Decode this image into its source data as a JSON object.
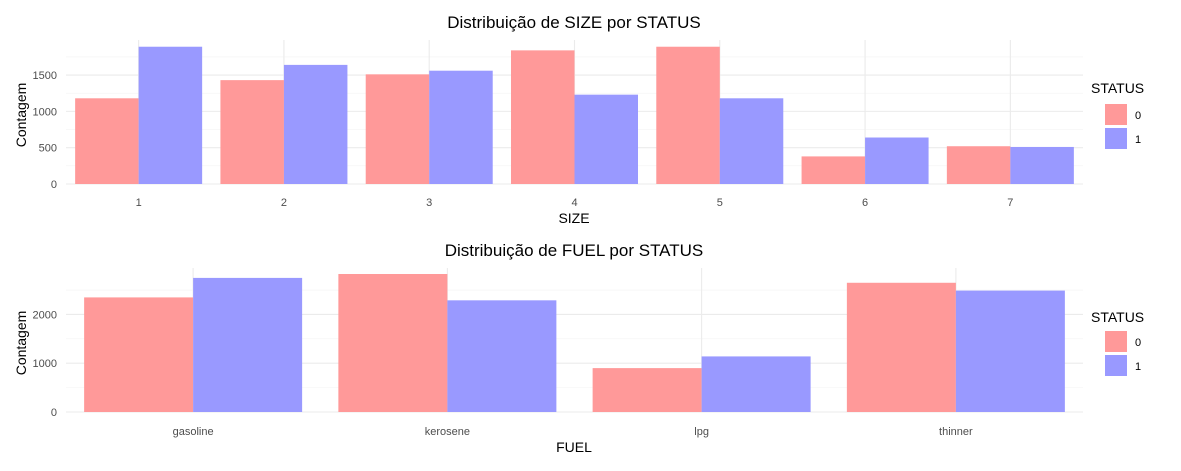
{
  "chart_data": [
    {
      "type": "bar",
      "title": "Distribuição de SIZE por STATUS",
      "xlabel": "SIZE",
      "ylabel": "Contagem",
      "categories": [
        "1",
        "2",
        "3",
        "4",
        "5",
        "6",
        "7"
      ],
      "series": [
        {
          "name": "0",
          "color": "#ff9999",
          "values": [
            1180,
            1430,
            1510,
            1840,
            1890,
            380,
            520
          ]
        },
        {
          "name": "1",
          "color": "#9999ff",
          "values": [
            1890,
            1640,
            1560,
            1230,
            1180,
            640,
            510
          ]
        }
      ],
      "ylim": [
        0,
        1900
      ],
      "yticks": [
        0,
        500,
        1000,
        1500
      ],
      "grid": true,
      "legend": {
        "title": "STATUS",
        "placement": "right"
      }
    },
    {
      "type": "bar",
      "title": "Distribuição de FUEL por STATUS",
      "xlabel": "FUEL",
      "ylabel": "Contagem",
      "categories": [
        "gasoline",
        "kerosene",
        "lpg",
        "thinner"
      ],
      "series": [
        {
          "name": "0",
          "color": "#ff9999",
          "values": [
            2350,
            2830,
            900,
            2650
          ]
        },
        {
          "name": "1",
          "color": "#9999ff",
          "values": [
            2750,
            2290,
            1140,
            2490
          ]
        }
      ],
      "ylim": [
        0,
        2830
      ],
      "yticks": [
        0,
        1000,
        2000
      ],
      "grid": true,
      "legend": {
        "title": "STATUS",
        "placement": "right"
      }
    }
  ]
}
